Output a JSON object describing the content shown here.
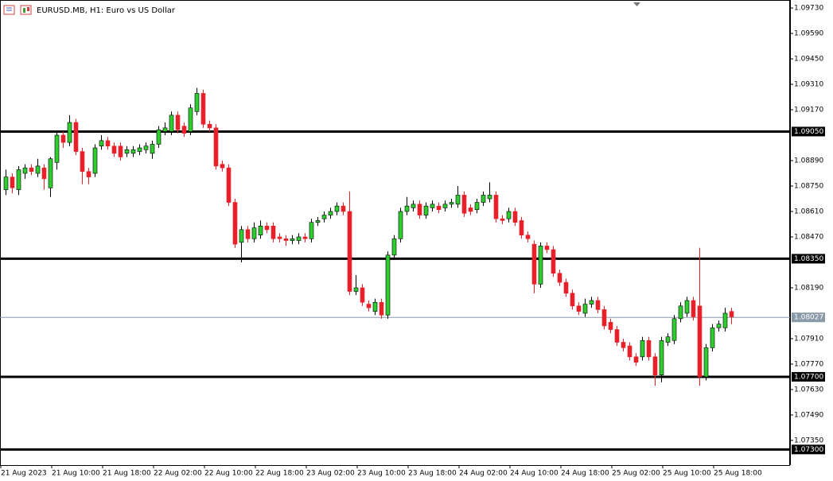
{
  "chart_data": {
    "type": "candlestick",
    "title": "EURUSD.MB, H1:  Euro vs US Dollar",
    "up_color": "#2ecc2e",
    "down_color": "#e8202a",
    "outline_color": "#000000",
    "categories": [
      "21 Aug 2023",
      null,
      null,
      null,
      null,
      null,
      null,
      null,
      "21 Aug 10:00",
      null,
      null,
      null,
      null,
      null,
      null,
      null,
      "21 Aug 18:00",
      null,
      null,
      null,
      null,
      null,
      null,
      null,
      "22 Aug 02:00",
      null,
      null,
      null,
      null,
      null,
      null,
      null,
      "22 Aug 10:00",
      null,
      null,
      null,
      null,
      null,
      null,
      null,
      "22 Aug 18:00",
      null,
      null,
      null,
      null,
      null,
      null,
      null,
      "23 Aug 02:00",
      null,
      null,
      null,
      null,
      null,
      null,
      null,
      "23 Aug 10:00",
      null,
      null,
      null,
      null,
      null,
      null,
      null,
      "23 Aug 18:00",
      null,
      null,
      null,
      null,
      null,
      null,
      null,
      "24 Aug 02:00",
      null,
      null,
      null,
      null,
      null,
      null,
      null,
      "24 Aug 10:00",
      null,
      null,
      null,
      null,
      null,
      null,
      null,
      "24 Aug 18:00",
      null,
      null,
      null,
      null,
      null,
      null,
      null,
      "25 Aug 02:00",
      null,
      null,
      null,
      null,
      null,
      null,
      null,
      "25 Aug 10:00",
      null,
      null,
      null,
      null,
      null,
      null,
      null,
      "25 Aug 18:00",
      null,
      null
    ],
    "open": [
      1.0873,
      1.088,
      1.0873,
      1.0882,
      1.0885,
      1.0882,
      1.0885,
      1.0874,
      1.0888,
      1.0903,
      1.0899,
      1.091,
      1.0894,
      1.0883,
      1.0882,
      1.0897,
      1.09,
      1.0897,
      1.0897,
      1.0893,
      1.0893,
      1.0894,
      1.0895,
      1.0893,
      1.0898,
      1.0905,
      1.0905,
      1.0914,
      1.0908,
      1.0905,
      1.0916,
      1.0926,
      1.0909,
      1.0907,
      1.0887,
      1.0885,
      1.0866,
      1.0844,
      1.0851,
      1.0846,
      1.0848,
      1.0853,
      1.0853,
      1.0847,
      1.0846,
      1.0845,
      1.0845,
      1.0847,
      1.0846,
      1.0855,
      1.0857,
      1.0859,
      1.0861,
      1.0864,
      1.0861,
      1.0817,
      1.0819,
      1.081,
      1.0806,
      1.0811,
      1.0804,
      1.0837,
      1.0846,
      1.0861,
      1.0863,
      1.0865,
      1.0859,
      1.0863,
      1.0864,
      1.0863,
      1.0865,
      1.0865,
      1.087,
      1.0863,
      1.0862,
      1.0866,
      1.0868,
      1.087,
      1.0857,
      1.0857,
      1.0861,
      1.0856,
      1.0848,
      1.0843,
      1.0821,
      1.0842,
      1.084,
      1.0827,
      1.0822,
      1.0816,
      1.0809,
      1.0805,
      1.081,
      1.0812,
      1.0807,
      1.08,
      1.0796,
      1.0789,
      1.0787,
      1.0781,
      1.0781,
      1.079,
      1.0781,
      1.0771,
      1.0789,
      1.079,
      1.0802,
      1.0805,
      1.0812,
      1.0809,
      1.077,
      1.0786,
      1.0797,
      1.0797,
      1.0806
    ],
    "high": [
      1.0884,
      1.0882,
      1.0886,
      1.0887,
      1.0887,
      1.089,
      1.0887,
      1.0891,
      1.0905,
      1.0905,
      1.0914,
      1.0912,
      1.0896,
      1.0885,
      1.0898,
      1.0903,
      1.0902,
      1.0899,
      1.0899,
      1.0897,
      1.0897,
      1.0898,
      1.0899,
      1.09,
      1.0908,
      1.091,
      1.0916,
      1.0916,
      1.091,
      1.092,
      1.0929,
      1.0928,
      1.0911,
      1.0909,
      1.0889,
      1.0887,
      1.0868,
      1.0853,
      1.0853,
      1.0855,
      1.0856,
      1.0855,
      1.0855,
      1.0849,
      1.0848,
      1.0848,
      1.0849,
      1.0849,
      1.0857,
      1.0858,
      1.0861,
      1.0863,
      1.0866,
      1.0866,
      1.0872,
      1.0826,
      1.0821,
      1.0812,
      1.0813,
      1.0813,
      1.0839,
      1.0848,
      1.0863,
      1.0869,
      1.0867,
      1.0867,
      1.0866,
      1.0867,
      1.0866,
      1.0867,
      1.0868,
      1.0875,
      1.0872,
      1.0865,
      1.0868,
      1.0872,
      1.0877,
      1.0872,
      1.0859,
      1.0863,
      1.0863,
      1.0858,
      1.085,
      1.0845,
      1.0844,
      1.0844,
      1.0842,
      1.0829,
      1.0824,
      1.0818,
      1.0811,
      1.0813,
      1.0814,
      1.0814,
      1.0809,
      1.0802,
      1.0798,
      1.0791,
      1.0789,
      1.0783,
      1.0792,
      1.0792,
      1.0783,
      1.0792,
      1.0794,
      1.0804,
      1.0811,
      1.0814,
      1.0814,
      1.0841,
      1.0788,
      1.0799,
      1.0801,
      1.0808,
      1.0808
    ],
    "low": [
      1.087,
      1.0871,
      1.087,
      1.0879,
      1.0881,
      1.088,
      1.0873,
      1.0869,
      1.0884,
      1.0896,
      1.0897,
      1.0892,
      1.0876,
      1.0876,
      1.088,
      1.0895,
      1.0895,
      1.0891,
      1.0889,
      1.0891,
      1.0891,
      1.0892,
      1.0893,
      1.089,
      1.0896,
      1.0903,
      1.0903,
      1.0904,
      1.0902,
      1.0903,
      1.0914,
      1.0907,
      1.0905,
      1.0884,
      1.0883,
      1.0864,
      1.0841,
      1.0833,
      1.0844,
      1.0844,
      1.0846,
      1.0849,
      1.0844,
      1.0844,
      1.0842,
      1.0843,
      1.0843,
      1.0844,
      1.0844,
      1.0853,
      1.0855,
      1.0857,
      1.0859,
      1.0859,
      1.0815,
      1.0815,
      1.0809,
      1.0806,
      1.0804,
      1.0802,
      1.0802,
      1.0835,
      1.0844,
      1.0859,
      1.0861,
      1.0857,
      1.0857,
      1.0861,
      1.086,
      1.0861,
      1.0863,
      1.0863,
      1.0858,
      1.0859,
      1.086,
      1.0864,
      1.0866,
      1.0855,
      1.0854,
      1.0855,
      1.0853,
      1.0846,
      1.0844,
      1.0816,
      1.0819,
      1.0838,
      1.0825,
      1.082,
      1.0814,
      1.0807,
      1.0804,
      1.0803,
      1.0808,
      1.0805,
      1.0796,
      1.0794,
      1.0787,
      1.0784,
      1.0779,
      1.0776,
      1.0779,
      1.0779,
      1.0765,
      1.0767,
      1.0787,
      1.0788,
      1.08,
      1.0803,
      1.0801,
      1.0765,
      1.0768,
      1.0784,
      1.0795,
      1.0795,
      1.0799
    ],
    "close": [
      1.088,
      1.0874,
      1.0884,
      1.0885,
      1.0883,
      1.0886,
      1.0879,
      1.089,
      1.0903,
      1.0899,
      1.091,
      1.0894,
      1.0883,
      1.088,
      1.0896,
      1.09,
      1.0897,
      1.0893,
      1.0891,
      1.0895,
      1.0895,
      1.0896,
      1.0897,
      1.0898,
      1.0906,
      1.0907,
      1.0914,
      1.0906,
      1.0904,
      1.0918,
      1.0926,
      1.0909,
      1.0907,
      1.0886,
      1.0885,
      1.0866,
      1.0843,
      1.0851,
      1.0846,
      1.0852,
      1.0853,
      1.0851,
      1.0846,
      1.0846,
      1.0845,
      1.0846,
      1.0847,
      1.0846,
      1.0855,
      1.0856,
      1.0859,
      1.0861,
      1.0864,
      1.0861,
      1.0817,
      1.0819,
      1.0811,
      1.0808,
      1.0811,
      1.0804,
      1.0837,
      1.0846,
      1.0861,
      1.0864,
      1.0865,
      1.0859,
      1.0864,
      1.0865,
      1.0862,
      1.0865,
      1.0866,
      1.087,
      1.086,
      1.0861,
      1.0866,
      1.087,
      1.087,
      1.0857,
      1.0856,
      1.0861,
      1.0855,
      1.0848,
      1.0846,
      1.0821,
      1.0842,
      1.084,
      1.0827,
      1.0822,
      1.0816,
      1.0809,
      1.0806,
      1.081,
      1.0812,
      1.0807,
      1.0798,
      1.0796,
      1.0789,
      1.0786,
      1.0781,
      1.0778,
      1.079,
      1.0781,
      1.0771,
      1.079,
      1.0792,
      1.0802,
      1.0809,
      1.0812,
      1.0803,
      1.077,
      1.0786,
      1.0797,
      1.0799,
      1.0805,
      1.0803
    ],
    "ylim": [
      1.07214,
      1.09774
    ],
    "yticks": [
      {
        "value": 1.0973,
        "label": "1.09730"
      },
      {
        "value": 1.0959,
        "label": "1.09590"
      },
      {
        "value": 1.0945,
        "label": "1.09450"
      },
      {
        "value": 1.0931,
        "label": "1.09310"
      },
      {
        "value": 1.0917,
        "label": "1.09170"
      },
      {
        "value": 1.0889,
        "label": "1.08890"
      },
      {
        "value": 1.0875,
        "label": "1.08750"
      },
      {
        "value": 1.0861,
        "label": "1.08610"
      },
      {
        "value": 1.0847,
        "label": "1.08470"
      },
      {
        "value": 1.0819,
        "label": "1.08190"
      },
      {
        "value": 1.0791,
        "label": "1.07910"
      },
      {
        "value": 1.0777,
        "label": "1.07770"
      },
      {
        "value": 1.0763,
        "label": "1.07630"
      },
      {
        "value": 1.0749,
        "label": "1.07490"
      },
      {
        "value": 1.0735,
        "label": "1.07350"
      }
    ],
    "levels": [
      {
        "value": 1.0905,
        "label": "1.09050"
      },
      {
        "value": 1.0835,
        "label": "1.08350"
      },
      {
        "value": 1.077,
        "label": "1.07700"
      },
      {
        "value": 1.073,
        "label": "1.07300"
      }
    ],
    "bid": {
      "value": 1.08027,
      "label": "1.08027"
    }
  }
}
